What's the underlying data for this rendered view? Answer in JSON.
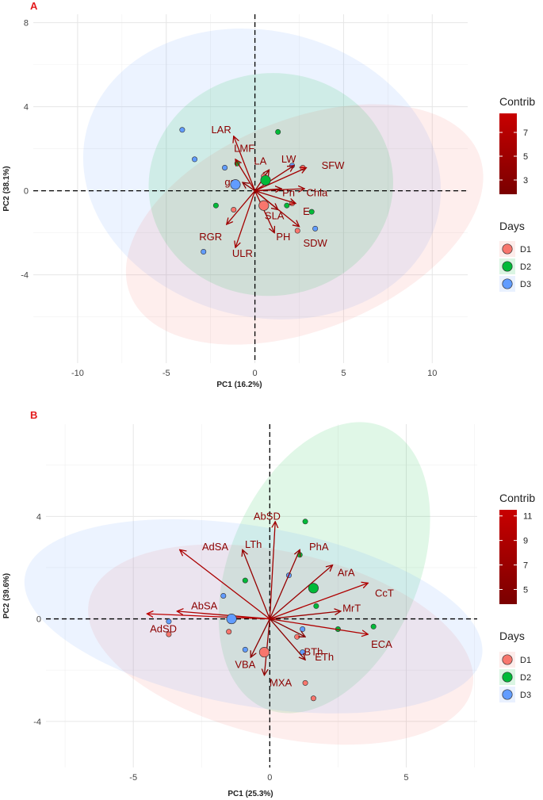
{
  "colors": {
    "D1": "#f8766d",
    "D2": "#00ba38",
    "D3": "#619cff",
    "arrow": "#8b0000",
    "panel_label": "#e31a1c"
  },
  "legend": {
    "contrib_title": "Contrib",
    "days_title": "Days",
    "days": [
      "D1",
      "D2",
      "D3"
    ]
  },
  "chart_data": [
    {
      "type": "scatter",
      "panel_label": "A",
      "xlabel": "PC1 (16.2%)",
      "ylabel": "PC2 (38.1%)",
      "xlim": [
        -12.5,
        12.0
      ],
      "ylim": [
        -8.2,
        8.4
      ],
      "xticks": [
        -10,
        -5,
        0,
        5,
        10
      ],
      "yticks": [
        -4,
        0,
        4,
        8
      ],
      "contrib_ticks": [
        3,
        5,
        7
      ],
      "contrib_range": [
        1.8,
        8.6
      ],
      "ellipses": [
        {
          "group": "D3",
          "cx": 0.4,
          "cy": 0.8,
          "rx": 10.2,
          "ry": 6.8,
          "angle": -14
        },
        {
          "group": "D1",
          "cx": 2.8,
          "cy": -1.6,
          "rx": 10.6,
          "ry": 5.0,
          "angle": 22
        },
        {
          "group": "D2",
          "cx": 0.9,
          "cy": 0.3,
          "rx": 6.9,
          "ry": 5.3,
          "angle": 5
        }
      ],
      "points": [
        {
          "group": "D3",
          "x": -4.1,
          "y": 2.9
        },
        {
          "group": "D3",
          "x": -3.4,
          "y": 1.5
        },
        {
          "group": "D3",
          "x": -1.7,
          "y": 1.1
        },
        {
          "group": "D3",
          "x": -2.9,
          "y": -2.9
        },
        {
          "group": "D3",
          "x": 2.1,
          "y": 1.2
        },
        {
          "group": "D3",
          "x": 3.4,
          "y": -1.8
        },
        {
          "group": "D2",
          "x": 1.3,
          "y": 2.8
        },
        {
          "group": "D2",
          "x": -1.0,
          "y": 1.3
        },
        {
          "group": "D2",
          "x": -2.2,
          "y": -0.7
        },
        {
          "group": "D2",
          "x": 1.8,
          "y": -0.7
        },
        {
          "group": "D2",
          "x": 3.2,
          "y": -1.0
        },
        {
          "group": "D1",
          "x": -1.2,
          "y": -0.9
        },
        {
          "group": "D1",
          "x": 2.1,
          "y": -0.6
        },
        {
          "group": "D1",
          "x": 2.4,
          "y": -1.9
        },
        {
          "group": "D1",
          "x": 2.7,
          "y": 1.1
        },
        {
          "group": "D1",
          "x": 0.5,
          "y": 0.7
        }
      ],
      "centroids": [
        {
          "group": "D1",
          "x": 0.5,
          "y": -0.7
        },
        {
          "group": "D2",
          "x": 0.6,
          "y": 0.5
        },
        {
          "group": "D3",
          "x": -1.1,
          "y": 0.3
        }
      ],
      "vectors": [
        {
          "name": "LAR",
          "x": -1.2,
          "y": 2.6,
          "contrib": 5.5,
          "lx": -1.9,
          "ly": 2.9
        },
        {
          "name": "LMF",
          "x": -1.1,
          "y": 1.5,
          "contrib": 5.0,
          "lx": -0.6,
          "ly": 2.0
        },
        {
          "name": "LA",
          "x": 0.8,
          "y": 1.0,
          "contrib": 3.5,
          "lx": 0.3,
          "ly": 1.4
        },
        {
          "name": "LW",
          "x": 2.2,
          "y": 1.2,
          "contrib": 4.5,
          "lx": 1.9,
          "ly": 1.5
        },
        {
          "name": "SFW",
          "x": 2.9,
          "y": 1.1,
          "contrib": 5.5,
          "lx": 4.4,
          "ly": 1.2
        },
        {
          "name": "gs",
          "x": -0.7,
          "y": 0.4,
          "contrib": 3.0,
          "lx": -1.4,
          "ly": 0.4
        },
        {
          "name": "Pn",
          "x": 1.5,
          "y": 0.1,
          "contrib": 3.5,
          "lx": 1.9,
          "ly": -0.1
        },
        {
          "name": "Chla",
          "x": 2.8,
          "y": 0.1,
          "contrib": 5.0,
          "lx": 3.5,
          "ly": -0.1
        },
        {
          "name": "E",
          "x": 2.3,
          "y": -0.6,
          "contrib": 4.5,
          "lx": 2.9,
          "ly": -1.0
        },
        {
          "name": "SLA",
          "x": 1.3,
          "y": -0.9,
          "contrib": 3.5,
          "lx": 1.1,
          "ly": -1.2
        },
        {
          "name": "PH",
          "x": 1.1,
          "y": -2.0,
          "contrib": 4.5,
          "lx": 1.6,
          "ly": -2.2
        },
        {
          "name": "SDW",
          "x": 2.5,
          "y": -1.7,
          "contrib": 5.0,
          "lx": 3.4,
          "ly": -2.5
        },
        {
          "name": "RGR",
          "x": -1.6,
          "y": -1.6,
          "contrib": 5.0,
          "lx": -2.5,
          "ly": -2.2
        },
        {
          "name": "ULR",
          "x": -1.1,
          "y": -2.7,
          "contrib": 5.5,
          "lx": -0.7,
          "ly": -3.0
        }
      ]
    },
    {
      "type": "scatter",
      "panel_label": "B",
      "xlabel": "PC1 (25.3%)",
      "ylabel": "PC2 (39.6%)",
      "xlim": [
        -8.2,
        7.6
      ],
      "ylim": [
        -5.8,
        7.6
      ],
      "xticks": [
        -5,
        0,
        5
      ],
      "yticks": [
        -4,
        0,
        4
      ],
      "contrib_ticks": [
        5,
        7,
        9,
        11
      ],
      "contrib_range": [
        3.8,
        11.5
      ],
      "ellipses": [
        {
          "group": "D2",
          "cx": 2.0,
          "cy": 2.0,
          "rx": 5.6,
          "ry": 3.7,
          "angle": 67
        },
        {
          "group": "D1",
          "cx": 0.4,
          "cy": -1.0,
          "rx": 7.2,
          "ry": 3.6,
          "angle": -13
        },
        {
          "group": "D3",
          "cx": -0.6,
          "cy": 0.1,
          "rx": 8.5,
          "ry": 3.5,
          "angle": -10
        }
      ],
      "points": [
        {
          "group": "D2",
          "x": 1.3,
          "y": 3.8
        },
        {
          "group": "D2",
          "x": 1.1,
          "y": 2.5
        },
        {
          "group": "D2",
          "x": -0.9,
          "y": 1.5
        },
        {
          "group": "D2",
          "x": 1.7,
          "y": 0.5
        },
        {
          "group": "D2",
          "x": 2.5,
          "y": -0.4
        },
        {
          "group": "D2",
          "x": 3.8,
          "y": -0.3
        },
        {
          "group": "D3",
          "x": -1.7,
          "y": 0.9
        },
        {
          "group": "D3",
          "x": 0.7,
          "y": 1.7
        },
        {
          "group": "D3",
          "x": -0.9,
          "y": -1.2
        },
        {
          "group": "D3",
          "x": 1.2,
          "y": -1.3
        },
        {
          "group": "D3",
          "x": -3.7,
          "y": -0.1
        },
        {
          "group": "D3",
          "x": 1.2,
          "y": -0.4
        },
        {
          "group": "D1",
          "x": -1.5,
          "y": -0.5
        },
        {
          "group": "D1",
          "x": 1.0,
          "y": -0.7
        },
        {
          "group": "D1",
          "x": 1.3,
          "y": -2.5
        },
        {
          "group": "D1",
          "x": 1.6,
          "y": -3.1
        },
        {
          "group": "D1",
          "x": -3.7,
          "y": -0.6
        }
      ],
      "centroids": [
        {
          "group": "D1",
          "x": -0.2,
          "y": -1.3
        },
        {
          "group": "D2",
          "x": 1.6,
          "y": 1.2
        },
        {
          "group": "D3",
          "x": -1.4,
          "y": 0.0
        }
      ],
      "vectors": [
        {
          "name": "AbSD",
          "x": 0.2,
          "y": 3.8,
          "contrib": 7.5,
          "lx": -0.1,
          "ly": 4.0
        },
        {
          "name": "LTh",
          "x": -1.0,
          "y": 2.7,
          "contrib": 6.5,
          "lx": -0.6,
          "ly": 2.9
        },
        {
          "name": "AdSA",
          "x": -3.3,
          "y": 2.7,
          "contrib": 8.5,
          "lx": -2.0,
          "ly": 2.8
        },
        {
          "name": "PhA",
          "x": 1.1,
          "y": 2.7,
          "contrib": 6.5,
          "lx": 1.8,
          "ly": 2.8
        },
        {
          "name": "ArA",
          "x": 2.3,
          "y": 2.1,
          "contrib": 7.0,
          "lx": 2.8,
          "ly": 1.8
        },
        {
          "name": "CcT",
          "x": 3.6,
          "y": 1.4,
          "contrib": 9.0,
          "lx": 4.2,
          "ly": 1.0
        },
        {
          "name": "MrT",
          "x": 2.6,
          "y": 0.3,
          "contrib": 7.0,
          "lx": 3.0,
          "ly": 0.4
        },
        {
          "name": "AbSA",
          "x": -3.4,
          "y": 0.3,
          "contrib": 9.0,
          "lx": -2.4,
          "ly": 0.5
        },
        {
          "name": "AdSD",
          "x": -4.5,
          "y": 0.2,
          "contrib": 10.5,
          "lx": -3.9,
          "ly": -0.4
        },
        {
          "name": "ECA",
          "x": 3.6,
          "y": -0.6,
          "contrib": 9.0,
          "lx": 4.1,
          "ly": -1.0
        },
        {
          "name": "BTh",
          "x": 1.3,
          "y": -0.7,
          "contrib": 5.0,
          "lx": 1.6,
          "ly": -1.3
        },
        {
          "name": "ETh",
          "x": 1.3,
          "y": -1.6,
          "contrib": 5.5,
          "lx": 2.0,
          "ly": -1.5
        },
        {
          "name": "VBA",
          "x": -0.7,
          "y": -1.5,
          "contrib": 5.5,
          "lx": -0.9,
          "ly": -1.8
        },
        {
          "name": "MXA",
          "x": -0.2,
          "y": -2.2,
          "contrib": 6.0,
          "lx": 0.4,
          "ly": -2.5
        }
      ]
    }
  ]
}
